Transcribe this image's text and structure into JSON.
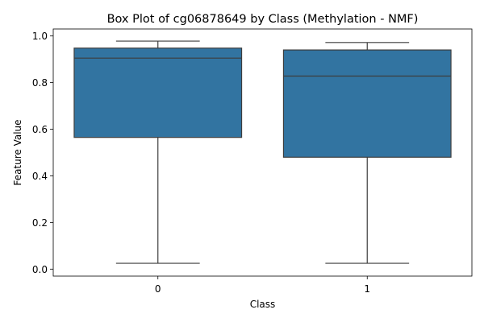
{
  "chart_data": {
    "type": "box",
    "title": "Box Plot of cg06878649 by Class (Methylation - NMF)",
    "xlabel": "Class",
    "ylabel": "Feature Value",
    "categories": [
      "0",
      "1"
    ],
    "ylim": [
      -0.03,
      1.03
    ],
    "yticks": [
      "0.0",
      "0.2",
      "0.4",
      "0.6",
      "0.8",
      "1.0"
    ],
    "grid": false,
    "box_color": "#3274a1",
    "line_color": "#3d3d3d",
    "boxes": [
      {
        "category": "0",
        "whisker_low": 0.025,
        "q1": 0.565,
        "median": 0.905,
        "q3": 0.948,
        "whisker_high": 0.978
      },
      {
        "category": "1",
        "whisker_low": 0.025,
        "q1": 0.48,
        "median": 0.828,
        "q3": 0.94,
        "whisker_high": 0.972
      }
    ]
  }
}
